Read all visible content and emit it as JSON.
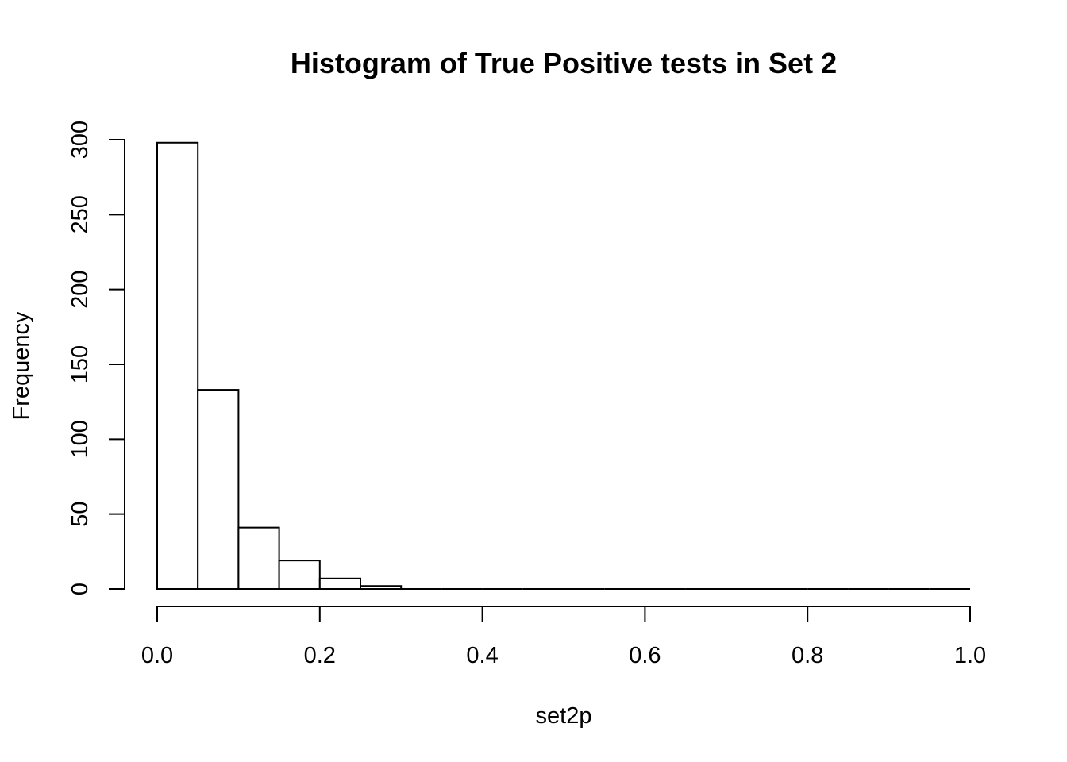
{
  "chart_data": {
    "type": "bar",
    "subtype": "histogram",
    "title": "Histogram of True Positive tests in Set 2",
    "xlabel": "set2p",
    "ylabel": "Frequency",
    "bin_width": 0.05,
    "bins": [
      {
        "start": 0.0,
        "end": 0.05,
        "count": 298
      },
      {
        "start": 0.05,
        "end": 0.1,
        "count": 133
      },
      {
        "start": 0.1,
        "end": 0.15,
        "count": 41
      },
      {
        "start": 0.15,
        "end": 0.2,
        "count": 19
      },
      {
        "start": 0.2,
        "end": 0.25,
        "count": 7
      },
      {
        "start": 0.25,
        "end": 0.3,
        "count": 2
      },
      {
        "start": 0.3,
        "end": 0.35,
        "count": 0
      },
      {
        "start": 0.35,
        "end": 0.4,
        "count": 0
      },
      {
        "start": 0.4,
        "end": 0.45,
        "count": 0
      },
      {
        "start": 0.45,
        "end": 0.5,
        "count": 0
      },
      {
        "start": 0.5,
        "end": 0.55,
        "count": 0
      },
      {
        "start": 0.55,
        "end": 0.6,
        "count": 0
      },
      {
        "start": 0.6,
        "end": 0.65,
        "count": 0
      },
      {
        "start": 0.65,
        "end": 0.7,
        "count": 0
      },
      {
        "start": 0.7,
        "end": 0.75,
        "count": 0
      },
      {
        "start": 0.75,
        "end": 0.8,
        "count": 0
      },
      {
        "start": 0.8,
        "end": 0.85,
        "count": 0
      },
      {
        "start": 0.85,
        "end": 0.9,
        "count": 0
      },
      {
        "start": 0.9,
        "end": 0.95,
        "count": 0
      },
      {
        "start": 0.95,
        "end": 1.0,
        "count": 0
      }
    ],
    "xlim": [
      0,
      1
    ],
    "ylim": [
      0,
      300
    ],
    "x_ticks": [
      {
        "value": 0.0,
        "label": "0.0"
      },
      {
        "value": 0.2,
        "label": "0.2"
      },
      {
        "value": 0.4,
        "label": "0.4"
      },
      {
        "value": 0.6,
        "label": "0.6"
      },
      {
        "value": 0.8,
        "label": "0.8"
      },
      {
        "value": 1.0,
        "label": "1.0"
      }
    ],
    "y_ticks": [
      {
        "value": 0,
        "label": "0"
      },
      {
        "value": 50,
        "label": "50"
      },
      {
        "value": 100,
        "label": "100"
      },
      {
        "value": 150,
        "label": "150"
      },
      {
        "value": 200,
        "label": "200"
      },
      {
        "value": 250,
        "label": "250"
      },
      {
        "value": 300,
        "label": "300"
      }
    ],
    "grid": false,
    "legend": "none",
    "colors": {
      "bar_fill": "#ffffff",
      "bar_stroke": "#000000"
    }
  }
}
